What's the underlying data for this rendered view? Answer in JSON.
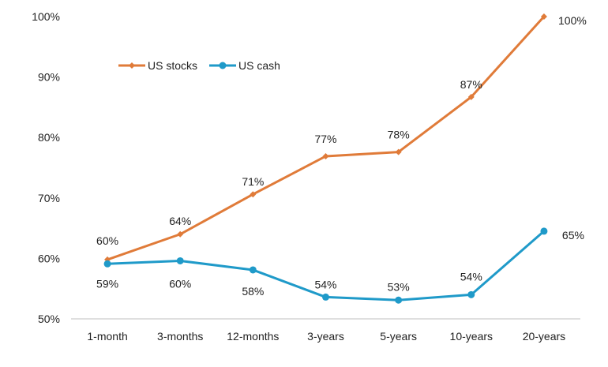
{
  "chart_data": {
    "type": "line",
    "title": "",
    "xlabel": "",
    "ylabel": "",
    "categories": [
      "1-month",
      "3-months",
      "12-months",
      "3-years",
      "5-years",
      "10-years",
      "20-years"
    ],
    "ylim": [
      50,
      100
    ],
    "yticks": [
      50,
      60,
      70,
      80,
      90,
      100
    ],
    "ytick_labels": [
      "50%",
      "60%",
      "70%",
      "80%",
      "90%",
      "100%"
    ],
    "grid": false,
    "legend_position": "top-left",
    "series": [
      {
        "name": "US stocks",
        "color": "#e07b39",
        "marker": "diamond",
        "values": [
          59.8,
          64.0,
          70.6,
          76.9,
          77.6,
          86.7,
          100.0
        ],
        "labels": [
          "60%",
          "64%",
          "71%",
          "77%",
          "78%",
          "87%",
          "100%"
        ]
      },
      {
        "name": "US cash",
        "color": "#1f9ac9",
        "marker": "circle",
        "values": [
          59.1,
          59.6,
          58.1,
          53.6,
          53.1,
          54.0,
          64.5
        ],
        "labels": [
          "59%",
          "60%",
          "58%",
          "54%",
          "53%",
          "54%",
          "65%"
        ]
      }
    ]
  }
}
